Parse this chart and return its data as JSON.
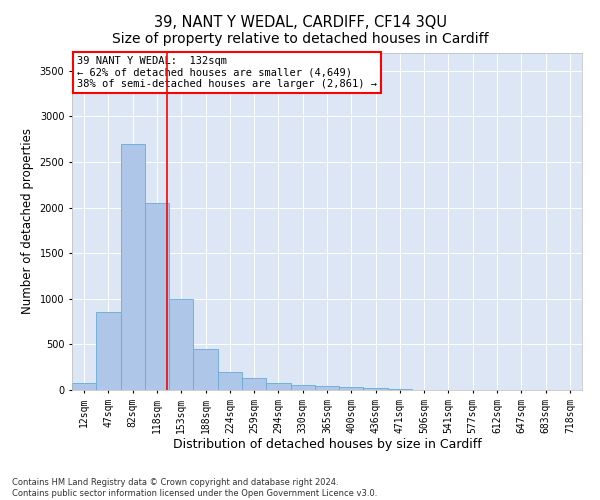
{
  "title": "39, NANT Y WEDAL, CARDIFF, CF14 3QU",
  "subtitle": "Size of property relative to detached houses in Cardiff",
  "xlabel": "Distribution of detached houses by size in Cardiff",
  "ylabel": "Number of detached properties",
  "categories": [
    "12sqm",
    "47sqm",
    "82sqm",
    "118sqm",
    "153sqm",
    "188sqm",
    "224sqm",
    "259sqm",
    "294sqm",
    "330sqm",
    "365sqm",
    "400sqm",
    "436sqm",
    "471sqm",
    "506sqm",
    "541sqm",
    "577sqm",
    "612sqm",
    "647sqm",
    "683sqm",
    "718sqm"
  ],
  "values": [
    80,
    850,
    2700,
    2050,
    1000,
    450,
    200,
    130,
    75,
    60,
    40,
    30,
    20,
    15,
    5,
    4,
    3,
    2,
    1,
    1,
    0
  ],
  "bar_color": "#aec6e8",
  "bar_edge_color": "#6aaad4",
  "vline_color": "red",
  "vline_x": 3.4,
  "annotation_text": "39 NANT Y WEDAL:  132sqm\n← 62% of detached houses are smaller (4,649)\n38% of semi-detached houses are larger (2,861) →",
  "annotation_box_color": "white",
  "annotation_box_edge_color": "red",
  "ylim": [
    0,
    3700
  ],
  "yticks": [
    0,
    500,
    1000,
    1500,
    2000,
    2500,
    3000,
    3500
  ],
  "background_color": "#dce6f5",
  "footer_text": "Contains HM Land Registry data © Crown copyright and database right 2024.\nContains public sector information licensed under the Open Government Licence v3.0.",
  "title_fontsize": 10.5,
  "tick_fontsize": 7,
  "ylabel_fontsize": 8.5,
  "xlabel_fontsize": 9,
  "annotation_fontsize": 7.5,
  "footer_fontsize": 6
}
